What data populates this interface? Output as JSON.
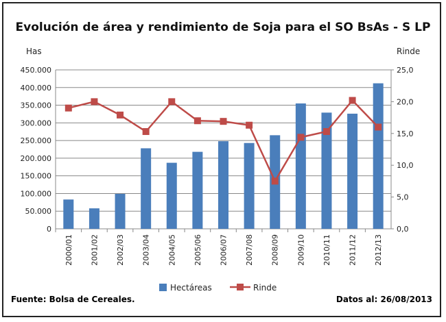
{
  "chart_data": {
    "type": "bar+line",
    "title": "Evolución de área y rendimiento de Soja para el SO BsAs - S LP",
    "ylabel": "Has",
    "y2label": "Rinde",
    "ylim": [
      0,
      450000
    ],
    "y2lim": [
      0,
      25
    ],
    "yticks": [
      "0",
      "50.000",
      "100.000",
      "150.000",
      "200.000",
      "250.000",
      "300.000",
      "350.000",
      "400.000",
      "450.000"
    ],
    "y2ticks": [
      "0,0",
      "5,0",
      "10,0",
      "15,0",
      "20,0",
      "25,0"
    ],
    "categories": [
      "2000/01",
      "2001/02",
      "2002/03",
      "2003/04",
      "2004/05",
      "2005/06",
      "2006/07",
      "2007/08",
      "2008/09",
      "2009/10",
      "2010/11",
      "2011/12",
      "2012/13"
    ],
    "series": [
      {
        "name": "Hectáreas",
        "type": "bar",
        "axis": "left",
        "color": "#4a7ebb",
        "values": [
          83000,
          58000,
          99000,
          228000,
          187000,
          218000,
          248000,
          243000,
          265000,
          355000,
          329000,
          326000,
          412000
        ]
      },
      {
        "name": "Rinde",
        "type": "line",
        "axis": "right",
        "color": "#be4b48",
        "values": [
          19.0,
          20.0,
          17.9,
          15.3,
          20.0,
          17.0,
          16.9,
          16.3,
          7.5,
          14.4,
          15.3,
          20.2,
          16.0
        ]
      }
    ],
    "grid": true,
    "legend": "bottom"
  },
  "footer": {
    "source": "Fuente: Bolsa de Cereales.",
    "date": "Datos al: 26/08/2013"
  }
}
